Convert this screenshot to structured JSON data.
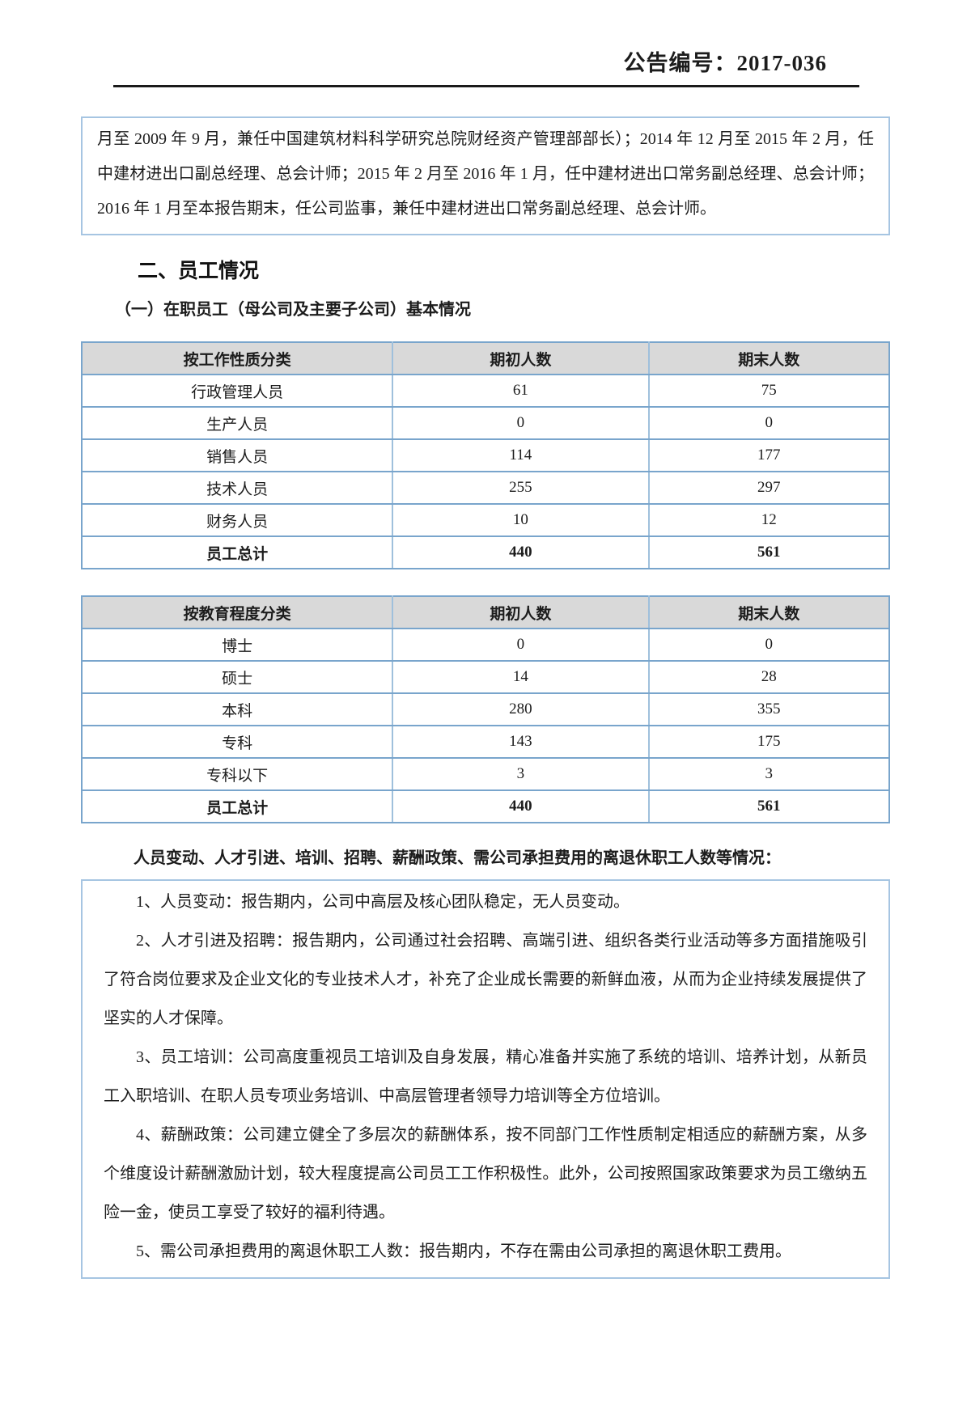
{
  "announcement_no": "公告编号：2017-036",
  "intro_box_text": "月至 2009 年 9 月，兼任中国建筑材料科学研究总院财经资产管理部部长）；2014 年 12 月至 2015 年 2 月，任中建材进出口副总经理、总会计师；2015 年 2 月至 2016 年 1 月，任中建材进出口常务副总经理、总会计师；2016 年 1 月至本报告期末，任公司监事，兼任中建材进出口常务副总经理、总会计师。",
  "section_title": "二、员工情况",
  "subsection_title": "（一）在职员工（母公司及主要子公司）基本情况",
  "table_by_job": {
    "headers": [
      "按工作性质分类",
      "期初人数",
      "期末人数"
    ],
    "rows": [
      [
        "行政管理人员",
        "61",
        "75"
      ],
      [
        "生产人员",
        "0",
        "0"
      ],
      [
        "销售人员",
        "114",
        "177"
      ],
      [
        "技术人员",
        "255",
        "297"
      ],
      [
        "财务人员",
        "10",
        "12"
      ]
    ],
    "total": [
      "员工总计",
      "440",
      "561"
    ]
  },
  "table_by_education": {
    "headers": [
      "按教育程度分类",
      "期初人数",
      "期末人数"
    ],
    "rows": [
      [
        "博士",
        "0",
        "0"
      ],
      [
        "硕士",
        "14",
        "28"
      ],
      [
        "本科",
        "280",
        "355"
      ],
      [
        "专科",
        "143",
        "175"
      ],
      [
        "专科以下",
        "3",
        "3"
      ]
    ],
    "total": [
      "员工总计",
      "440",
      "561"
    ]
  },
  "policy_heading": "人员变动、人才引进、培训、招聘、薪酬政策、需公司承担费用的离退休职工人数等情况：",
  "policy_paragraphs": [
    "1、人员变动：报告期内，公司中高层及核心团队稳定，无人员变动。",
    "2、人才引进及招聘：报告期内，公司通过社会招聘、高端引进、组织各类行业活动等多方面措施吸引了符合岗位要求及企业文化的专业技术人才，补充了企业成长需要的新鲜血液，从而为企业持续发展提供了坚实的人才保障。",
    "3、员工培训：公司高度重视员工培训及自身发展，精心准备并实施了系统的培训、培养计划，从新员工入职培训、在职人员专项业务培训、中高层管理者领导力培训等全方位培训。",
    "4、薪酬政策：公司建立健全了多层次的薪酬体系，按不同部门工作性质制定相适应的薪酬方案，从多个维度设计薪酬激励计划，较大程度提高公司员工工作积极性。此外，公司按照国家政策要求为员工缴纳五险一金，使员工享受了较好的福利待遇。",
    "5、需公司承担费用的离退休职工人数：报告期内，不存在需由公司承担的离退休职工费用。"
  ],
  "colors": {
    "box_border_blue": "#a6c5e2",
    "table_border_blue": "#79a5cc",
    "table_header_bg": "#d9d9d9",
    "rule_black": "#1a1a1a"
  }
}
